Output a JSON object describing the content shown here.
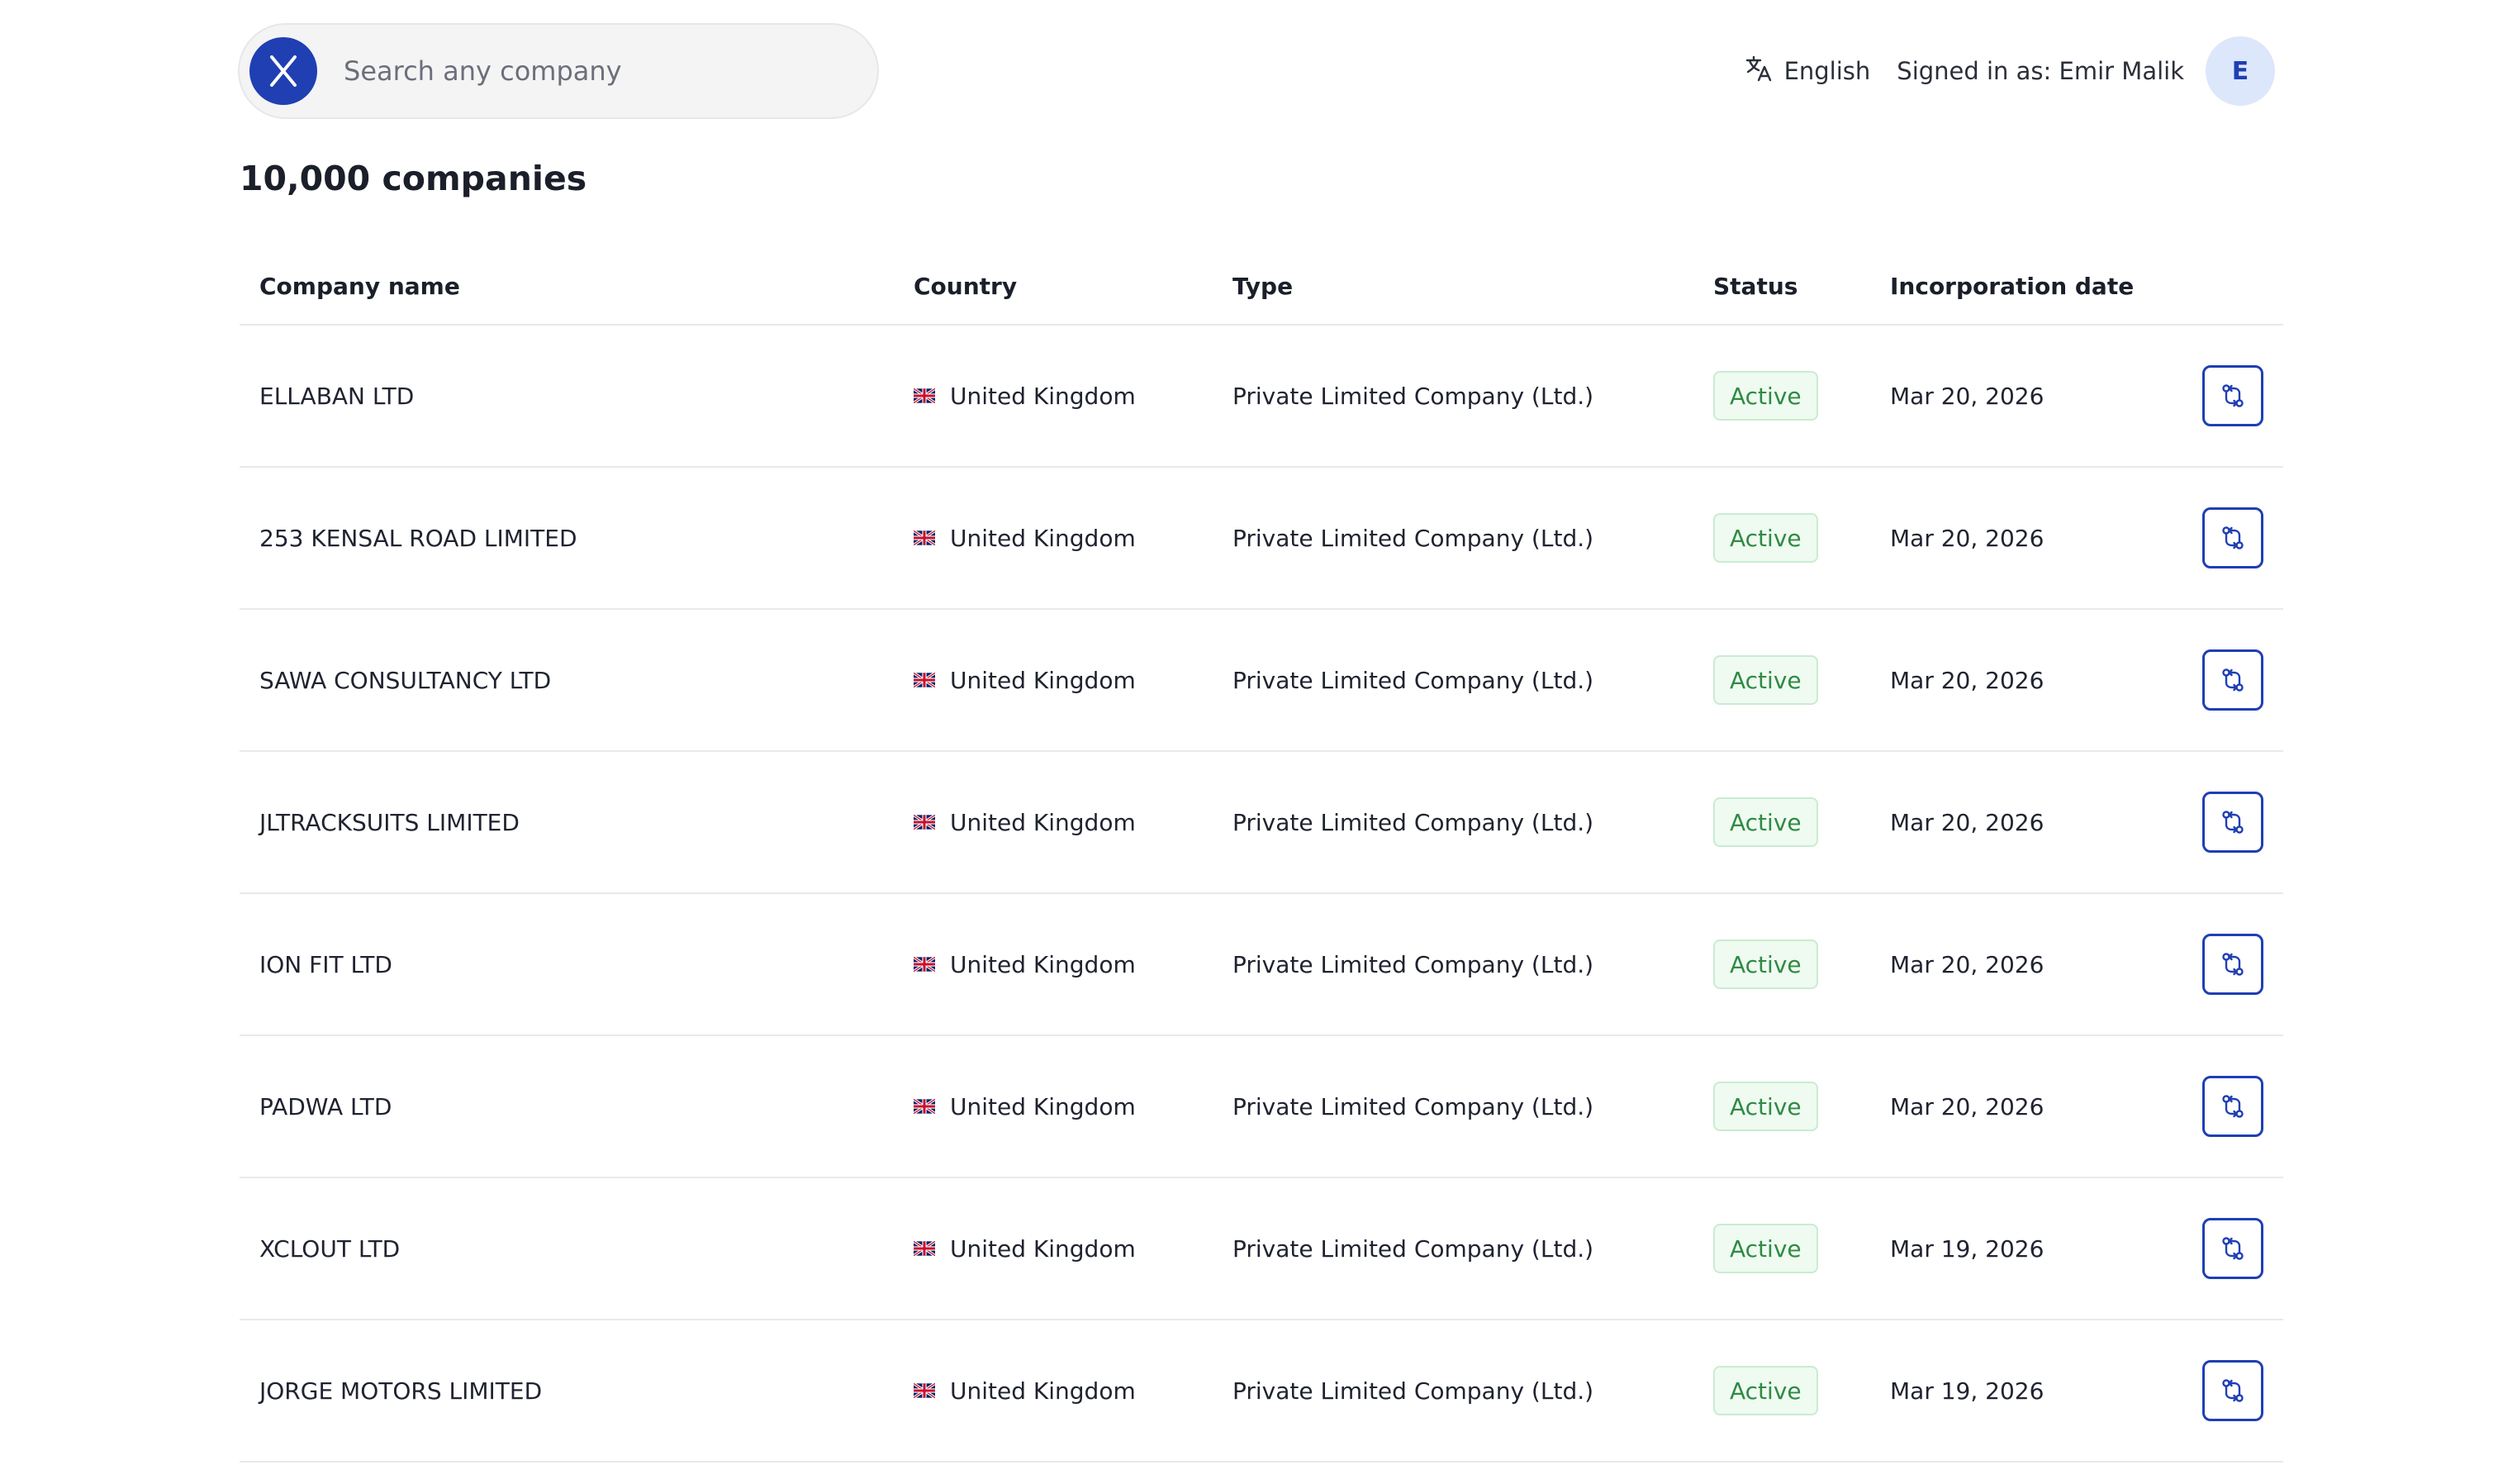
{
  "search": {
    "placeholder": "Search any company",
    "logo_letter": "X"
  },
  "header": {
    "language_label": "English",
    "signed_in_text": "Signed in as: Emir Malik",
    "avatar_initial": "E"
  },
  "page_title": "10,000 companies",
  "table": {
    "headers": {
      "name": "Company name",
      "country": "Country",
      "type": "Type",
      "status": "Status",
      "date": "Incorporation date"
    },
    "rows": [
      {
        "name": "ELLABAN LTD",
        "country": "United Kingdom",
        "type": "Private Limited Company (Ltd.)",
        "status": "Active",
        "date": "Mar 20, 2026"
      },
      {
        "name": "253 KENSAL ROAD LIMITED",
        "country": "United Kingdom",
        "type": "Private Limited Company (Ltd.)",
        "status": "Active",
        "date": "Mar 20, 2026"
      },
      {
        "name": "SAWA CONSULTANCY LTD",
        "country": "United Kingdom",
        "type": "Private Limited Company (Ltd.)",
        "status": "Active",
        "date": "Mar 20, 2026"
      },
      {
        "name": "JLTRACKSUITS LIMITED",
        "country": "United Kingdom",
        "type": "Private Limited Company (Ltd.)",
        "status": "Active",
        "date": "Mar 20, 2026"
      },
      {
        "name": "ION FIT LTD",
        "country": "United Kingdom",
        "type": "Private Limited Company (Ltd.)",
        "status": "Active",
        "date": "Mar 20, 2026"
      },
      {
        "name": "PADWA LTD",
        "country": "United Kingdom",
        "type": "Private Limited Company (Ltd.)",
        "status": "Active",
        "date": "Mar 20, 2026"
      },
      {
        "name": "XCLOUT LTD",
        "country": "United Kingdom",
        "type": "Private Limited Company (Ltd.)",
        "status": "Active",
        "date": "Mar 19, 2026"
      },
      {
        "name": "JORGE MOTORS LIMITED",
        "country": "United Kingdom",
        "type": "Private Limited Company (Ltd.)",
        "status": "Active",
        "date": "Mar 19, 2026"
      }
    ]
  },
  "icons": {
    "logo": "x-logo-icon",
    "language": "translate-icon",
    "flag": "uk-flag-icon",
    "row_action": "compare-arrows-icon"
  },
  "colors": {
    "brand": "#1f3fb3",
    "status_active_text": "#2f8a43",
    "status_active_bg": "#effaf1",
    "avatar_bg": "#dde7fb"
  }
}
